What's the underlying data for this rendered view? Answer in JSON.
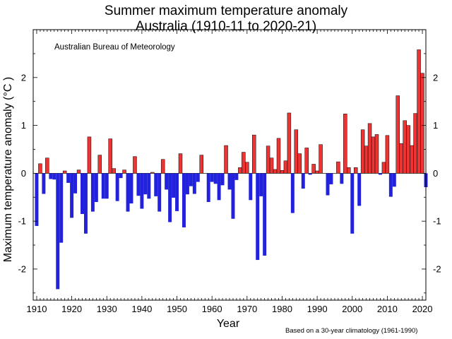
{
  "chart_data": {
    "type": "bar",
    "title": "Summer maximum temperature anomaly",
    "subtitle": "Australia (1910-11 to 2020-21)",
    "source": "Australian Bureau of Meteorology",
    "note": "Based on a 30-year climatology (1961-1990)",
    "xlabel": "Year",
    "ylabel": "Maximum temperature anomaly (°C )",
    "xlim": [
      1909,
      2021
    ],
    "ylim": [
      -2.65,
      3.0
    ],
    "xticks": [
      1910,
      1920,
      1930,
      1940,
      1950,
      1960,
      1970,
      1980,
      1990,
      2000,
      2010,
      2020
    ],
    "yticks": [
      -2,
      -1,
      0,
      1,
      2
    ],
    "positive_color": "#ee3333",
    "negative_color": "#2222dd",
    "start_year": 1910,
    "values": [
      -1.1,
      0.2,
      -0.43,
      0.32,
      -0.12,
      -0.13,
      -2.42,
      -1.45,
      0.05,
      -0.2,
      -0.93,
      -0.42,
      0.07,
      -0.85,
      -1.26,
      0.76,
      -0.8,
      -0.6,
      0.38,
      -0.53,
      -0.53,
      0.72,
      0.1,
      -0.58,
      -0.1,
      0.07,
      -0.8,
      -0.63,
      0.35,
      -0.47,
      -0.74,
      -0.44,
      -0.53,
      0.02,
      -0.48,
      -0.8,
      0.29,
      -0.34,
      -1.02,
      -0.51,
      -0.79,
      0.41,
      -1.13,
      -0.44,
      -0.27,
      -0.43,
      -0.18,
      0.38,
      0.0,
      -0.6,
      -0.18,
      -0.22,
      -0.56,
      -0.25,
      0.58,
      -0.34,
      -0.95,
      -0.14,
      0.12,
      0.44,
      0.23,
      -0.56,
      0.8,
      -1.81,
      -0.48,
      -1.72,
      0.57,
      0.32,
      0.08,
      0.73,
      0.06,
      0.26,
      1.26,
      -0.83,
      0.91,
      0.41,
      -0.32,
      0.53,
      -0.03,
      0.19,
      0.05,
      0.6,
      0.0,
      -0.46,
      -0.23,
      0.0,
      0.24,
      -0.22,
      1.24,
      0.12,
      -1.26,
      0.12,
      -0.68,
      0.91,
      0.57,
      1.04,
      0.76,
      0.81,
      -0.03,
      0.23,
      0.79,
      -0.49,
      -0.28,
      1.62,
      0.62,
      1.1,
      1.0,
      0.58,
      1.25,
      2.58,
      2.09,
      -0.29
    ]
  }
}
